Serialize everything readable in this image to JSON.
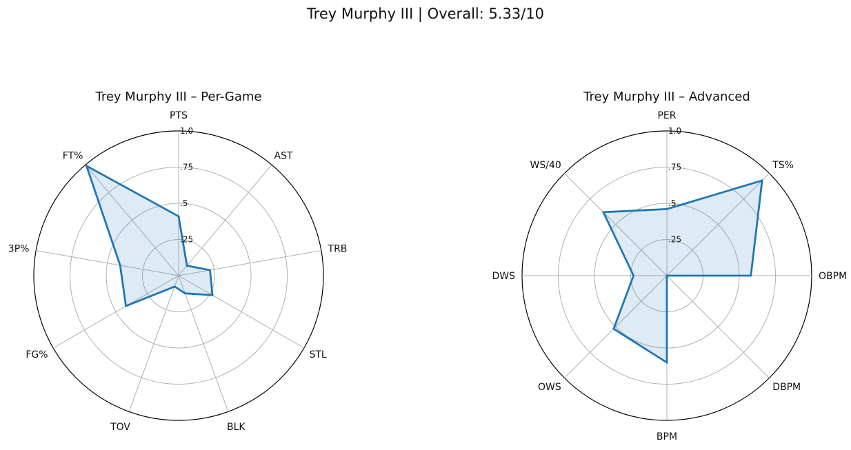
{
  "figure": {
    "title": "Trey Murphy III | Overall: 5.33/10"
  },
  "colors": {
    "line": "#1f77b4",
    "fill": "#1f77b4",
    "grid": "#b0b0b0",
    "frame": "#000000"
  },
  "chart_data": [
    {
      "type": "radar",
      "title": "Trey Murphy III – Per-Game",
      "rlim": [
        0,
        1
      ],
      "radial_ticks": [
        {
          "value": 0.25,
          "label": ".25"
        },
        {
          "value": 0.5,
          "label": ".5"
        },
        {
          "value": 0.75,
          "label": ".75"
        },
        {
          "value": 1.0,
          "label": "1.0"
        }
      ],
      "grid": true,
      "categories": [
        "PTS",
        "AST",
        "TRB",
        "STL",
        "BLK",
        "TOV",
        "FG%",
        "3P%",
        "FT%"
      ],
      "values": [
        0.41,
        0.09,
        0.22,
        0.27,
        0.13,
        0.08,
        0.42,
        0.41,
        0.99
      ]
    },
    {
      "type": "radar",
      "title": "Trey Murphy III – Advanced",
      "rlim": [
        0,
        1
      ],
      "radial_ticks": [
        {
          "value": 0.25,
          "label": ".25"
        },
        {
          "value": 0.5,
          "label": ".5"
        },
        {
          "value": 0.75,
          "label": ".75"
        },
        {
          "value": 1.0,
          "label": "1.0"
        }
      ],
      "grid": true,
      "categories": [
        "PER",
        "TS%",
        "OBPM",
        "DBPM",
        "BPM",
        "OWS",
        "DWS",
        "WS/40"
      ],
      "values": [
        0.46,
        0.93,
        0.58,
        0.0,
        0.6,
        0.52,
        0.23,
        0.62
      ]
    }
  ]
}
